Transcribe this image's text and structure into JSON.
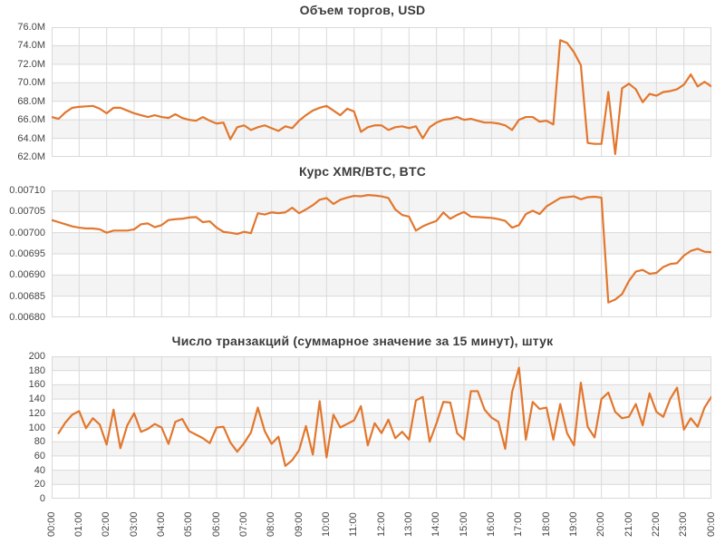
{
  "style": {
    "line_color": "#e2772e",
    "grid_color": "#d9d9d9",
    "band_gray": "#f4f4f4",
    "band_white": "#ffffff",
    "label_color": "#454545",
    "title_color": "#3c3c3c"
  },
  "x_axis": {
    "hours_span": 24,
    "labels": [
      "00:00",
      "01:00",
      "02:00",
      "03:00",
      "04:00",
      "05:00",
      "06:00",
      "07:00",
      "08:00",
      "09:00",
      "10:00",
      "11:00",
      "12:00",
      "13:00",
      "14:00",
      "15:00",
      "16:00",
      "17:00",
      "18:00",
      "19:00",
      "20:00",
      "21:00",
      "22:00",
      "23:00",
      "00:00"
    ]
  },
  "chart_data": [
    {
      "type": "line",
      "title": "Объем торгов, USD",
      "ylabel": "USD",
      "ymin": 62000000,
      "ymax": 76000000,
      "y_tick_labels": [
        "76.0M",
        "74.0M",
        "72.0M",
        "70.0M",
        "68.0M",
        "66.0M",
        "64.0M",
        "62.0M"
      ],
      "x_start_hour": 0,
      "x_step_hours": 0.25,
      "unit_scale": "millions",
      "values_millions": [
        66.3,
        66.1,
        66.8,
        67.3,
        67.4,
        67.45,
        67.5,
        67.2,
        66.7,
        67.3,
        67.3,
        67.0,
        66.7,
        66.5,
        66.3,
        66.5,
        66.3,
        66.2,
        66.6,
        66.2,
        66.0,
        65.9,
        66.3,
        65.9,
        65.6,
        65.7,
        63.9,
        65.2,
        65.4,
        64.9,
        65.2,
        65.4,
        65.1,
        64.8,
        65.3,
        65.1,
        65.9,
        66.5,
        67.0,
        67.3,
        67.5,
        67.0,
        66.5,
        67.2,
        66.9,
        64.7,
        65.2,
        65.4,
        65.4,
        64.9,
        65.2,
        65.3,
        65.1,
        65.3,
        64.0,
        65.2,
        65.7,
        66.0,
        66.1,
        66.3,
        66.0,
        66.1,
        65.9,
        65.7,
        65.7,
        65.6,
        65.4,
        64.9,
        66.0,
        66.3,
        66.3,
        65.8,
        65.9,
        65.5,
        74.6,
        74.3,
        73.3,
        71.9,
        63.5,
        63.4,
        63.4,
        69.0,
        62.3,
        69.4,
        69.9,
        69.3,
        67.9,
        68.8,
        68.6,
        69.0,
        69.1,
        69.3,
        69.8,
        70.9,
        69.6,
        70.1,
        69.6
      ]
    },
    {
      "type": "line",
      "title": "Курс XMR/BTC, BTC",
      "ylabel": "BTC",
      "ymin": 0.0068,
      "ymax": 0.0071,
      "y_tick_labels": [
        "0.00710",
        "0.00705",
        "0.00700",
        "0.00695",
        "0.00690",
        "0.00685",
        "0.00680"
      ],
      "x_start_hour": 0,
      "x_step_hours": 0.25,
      "values": [
        0.00703,
        0.007025,
        0.00702,
        0.007015,
        0.007012,
        0.00701,
        0.00701,
        0.007008,
        0.007,
        0.007005,
        0.007005,
        0.007005,
        0.007008,
        0.00702,
        0.007022,
        0.007013,
        0.007018,
        0.00703,
        0.007032,
        0.007033,
        0.007036,
        0.007037,
        0.007025,
        0.007027,
        0.007012,
        0.007002,
        0.007,
        0.006997,
        0.007002,
        0.006999,
        0.007046,
        0.007043,
        0.007048,
        0.007046,
        0.007048,
        0.007059,
        0.007046,
        0.007055,
        0.007065,
        0.007078,
        0.007082,
        0.007068,
        0.007078,
        0.007083,
        0.007087,
        0.007086,
        0.007089,
        0.007088,
        0.007086,
        0.007082,
        0.007055,
        0.007042,
        0.007038,
        0.007005,
        0.007015,
        0.007022,
        0.007028,
        0.007048,
        0.007033,
        0.007042,
        0.007049,
        0.007038,
        0.007037,
        0.007036,
        0.007035,
        0.007032,
        0.007028,
        0.007012,
        0.007018,
        0.007044,
        0.007052,
        0.007044,
        0.007062,
        0.007072,
        0.007082,
        0.007084,
        0.007086,
        0.007079,
        0.007084,
        0.007085,
        0.007083,
        0.006835,
        0.006842,
        0.006855,
        0.006886,
        0.006908,
        0.006912,
        0.006903,
        0.006905,
        0.006919,
        0.006926,
        0.006928,
        0.006946,
        0.006957,
        0.006962,
        0.006955,
        0.006954
      ]
    },
    {
      "type": "line",
      "title": "Число транзакций (суммарное значение за 15 минут), штук",
      "ylabel": "штук",
      "ymin": 0,
      "ymax": 200,
      "y_tick_labels": [
        "200",
        "180",
        "160",
        "140",
        "120",
        "100",
        "80",
        "60",
        "40",
        "20",
        "0"
      ],
      "x_start_hour": 0.25,
      "x_step_hours": 0.25,
      "values": [
        92,
        107,
        118,
        123,
        99,
        113,
        104,
        76,
        125,
        71,
        103,
        120,
        94,
        98,
        105,
        100,
        77,
        108,
        112,
        95,
        90,
        85,
        78,
        100,
        101,
        79,
        66,
        78,
        93,
        128,
        95,
        77,
        87,
        46,
        54,
        68,
        102,
        62,
        137,
        58,
        118,
        100,
        105,
        110,
        130,
        75,
        106,
        92,
        111,
        85,
        94,
        83,
        138,
        143,
        80,
        106,
        136,
        135,
        92,
        83,
        151,
        151,
        125,
        114,
        108,
        70,
        150,
        184,
        83,
        136,
        126,
        128,
        83,
        133,
        92,
        75,
        163,
        101,
        86,
        140,
        149,
        122,
        113,
        115,
        133,
        103,
        148,
        122,
        115,
        140,
        156,
        97,
        113,
        101,
        128,
        143
      ]
    }
  ]
}
